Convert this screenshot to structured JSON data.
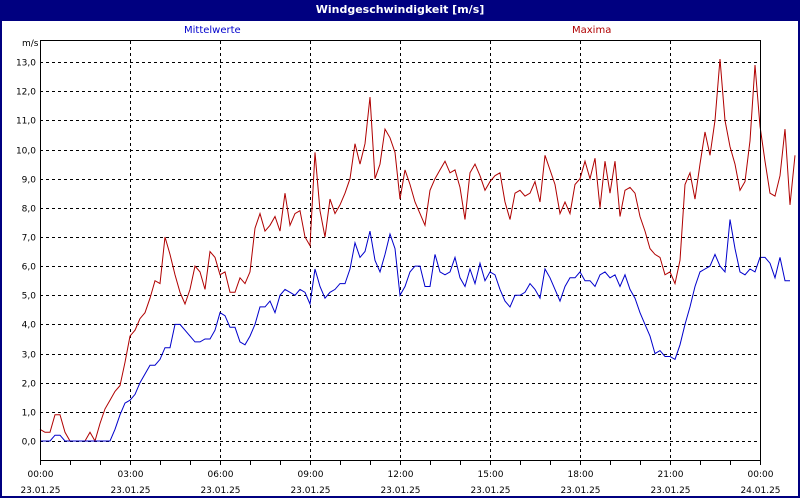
{
  "window": {
    "title": "Windgeschwindigkeit [m/s]"
  },
  "legend": {
    "mean_label": "Mittelwerte",
    "max_label": "Maxima",
    "mean_color": "#0000cc",
    "max_color": "#b00000"
  },
  "axis": {
    "y_unit": "m/s"
  },
  "chart_data": {
    "type": "line",
    "title": "Windgeschwindigkeit [m/s]",
    "xlabel": "",
    "ylabel": "m/s",
    "ylim": [
      -0.6,
      13.8
    ],
    "grid": true,
    "legend_position": "top",
    "y_ticks": [
      "0,0",
      "1,0",
      "2,0",
      "3,0",
      "4,0",
      "5,0",
      "6,0",
      "7,0",
      "8,0",
      "9,0",
      "10,0",
      "11,0",
      "12,0",
      "13,0"
    ],
    "x_ticks": [
      {
        "time": "00:00",
        "date": "23.01.25"
      },
      {
        "time": "03:00",
        "date": "23.01.25"
      },
      {
        "time": "06:00",
        "date": "23.01.25"
      },
      {
        "time": "09:00",
        "date": "23.01.25"
      },
      {
        "time": "12:00",
        "date": "23.01.25"
      },
      {
        "time": "15:00",
        "date": "23.01.25"
      },
      {
        "time": "18:00",
        "date": "23.01.25"
      },
      {
        "time": "21:00",
        "date": "23.01.25"
      },
      {
        "time": "00:00",
        "date": "24.01.25"
      }
    ],
    "sample_interval_minutes": 10,
    "series": [
      {
        "name": "Mittelwerte",
        "color": "#0000cc",
        "values": [
          0,
          0,
          0,
          0.2,
          0.2,
          0,
          0,
          0,
          0,
          0,
          0,
          0,
          0,
          0,
          0,
          0.4,
          0.9,
          1.3,
          1.4,
          1.6,
          2.0,
          2.3,
          2.6,
          2.6,
          2.8,
          3.2,
          3.2,
          4.0,
          4.0,
          3.8,
          3.6,
          3.4,
          3.4,
          3.5,
          3.5,
          3.8,
          4.4,
          4.3,
          3.9,
          3.9,
          3.4,
          3.3,
          3.6,
          4.0,
          4.6,
          4.6,
          4.8,
          4.4,
          5.0,
          5.2,
          5.1,
          5.0,
          5.2,
          5.1,
          4.7,
          5.9,
          5.3,
          4.9,
          5.1,
          5.2,
          5.4,
          5.4,
          5.9,
          6.8,
          6.3,
          6.5,
          7.2,
          6.2,
          5.8,
          6.4,
          7.1,
          6.6,
          5.0,
          5.3,
          5.8,
          6.0,
          6.0,
          5.3,
          5.3,
          6.4,
          5.8,
          5.7,
          5.8,
          6.3,
          5.6,
          5.3,
          5.9,
          5.4,
          6.1,
          5.5,
          5.8,
          5.7,
          5.2,
          4.8,
          4.6,
          5.0,
          5.0,
          5.1,
          5.4,
          5.2,
          4.9,
          5.9,
          5.6,
          5.2,
          4.8,
          5.3,
          5.6,
          5.6,
          5.8,
          5.5,
          5.5,
          5.3,
          5.7,
          5.8,
          5.6,
          5.7,
          5.3,
          5.7,
          5.2,
          4.9,
          4.4,
          4.0,
          3.6,
          3.0,
          3.1,
          2.9,
          2.9,
          2.8,
          3.3,
          4.0,
          4.6,
          5.3,
          5.8,
          5.9,
          6.0,
          6.4,
          6.0,
          5.8,
          7.6,
          6.6,
          5.8,
          5.7,
          5.9,
          5.8,
          6.3,
          6.3,
          6.1,
          5.6,
          6.3,
          5.5,
          5.5
        ]
      },
      {
        "name": "Maxima",
        "color": "#b00000",
        "values": [
          0.4,
          0.3,
          0.3,
          0.9,
          0.9,
          0.3,
          0,
          0,
          0,
          0,
          0.3,
          0,
          0.6,
          1.1,
          1.4,
          1.7,
          1.9,
          2.7,
          3.6,
          3.8,
          4.2,
          4.4,
          4.9,
          5.5,
          5.4,
          7.0,
          6.4,
          5.7,
          5.1,
          4.7,
          5.2,
          6.0,
          5.8,
          5.2,
          6.5,
          6.3,
          5.7,
          5.8,
          5.1,
          5.1,
          5.6,
          5.4,
          5.8,
          7.3,
          7.8,
          7.2,
          7.4,
          7.7,
          7.2,
          8.5,
          7.4,
          7.8,
          7.9,
          7.0,
          6.7,
          9.9,
          7.9,
          7.0,
          8.3,
          7.8,
          8.1,
          8.5,
          9.0,
          10.2,
          9.5,
          10.2,
          11.8,
          9.0,
          9.5,
          10.7,
          10.4,
          9.9,
          8.3,
          9.3,
          8.8,
          8.2,
          7.8,
          7.4,
          8.6,
          9.0,
          9.3,
          9.6,
          9.2,
          9.3,
          8.7,
          7.6,
          9.2,
          9.5,
          9.1,
          8.6,
          8.9,
          9.1,
          9.2,
          8.2,
          7.6,
          8.5,
          8.6,
          8.4,
          8.5,
          8.9,
          8.2,
          9.8,
          9.3,
          8.8,
          7.8,
          8.2,
          7.8,
          8.8,
          9.0,
          9.6,
          9.0,
          9.7,
          8.0,
          9.6,
          8.5,
          9.6,
          7.7,
          8.6,
          8.7,
          8.5,
          7.7,
          7.2,
          6.6,
          6.4,
          6.3,
          5.7,
          5.8,
          5.4,
          6.2,
          8.8,
          9.2,
          8.3,
          9.5,
          10.6,
          9.8,
          11.0,
          13.1,
          11.0,
          10.1,
          9.5,
          8.6,
          8.9,
          10.3,
          12.9,
          10.8,
          9.6,
          8.5,
          8.4,
          9.1,
          10.7,
          8.1,
          9.8
        ]
      }
    ]
  }
}
